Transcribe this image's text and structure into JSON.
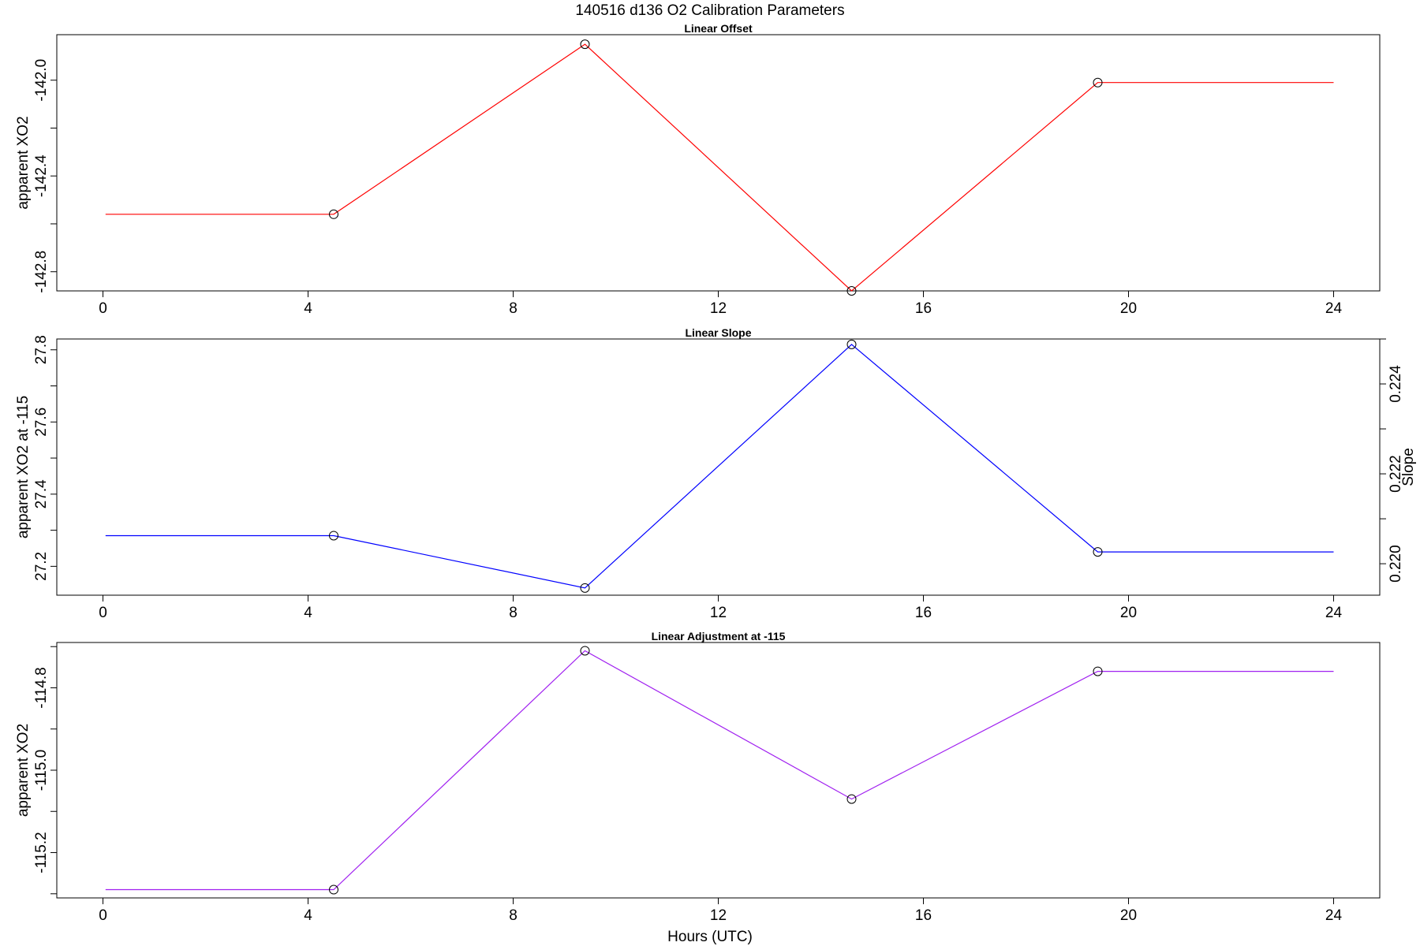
{
  "title": "140516   d136   O2 Calibration Parameters",
  "xlabel": "Hours (UTC)",
  "chart_data": [
    {
      "type": "line",
      "title": "Linear Offset",
      "xlabel": "",
      "ylabel": "apparent XO2",
      "x_ticks": [
        "0",
        "4",
        "8",
        "12",
        "16",
        "20",
        "24"
      ],
      "y_ticks": [
        "-142.0",
        "-142.4",
        "-142.8"
      ],
      "xlim": [
        -0.9,
        24.9
      ],
      "ylim": [
        -142.88,
        -141.81
      ],
      "grid": false,
      "series": [
        {
          "color": "#ff0000",
          "x": [
            0.05,
            4.5,
            9.4,
            14.6,
            19.4,
            24.0
          ],
          "y": [
            -142.56,
            -142.56,
            -141.85,
            -142.88,
            -142.01,
            -142.01
          ]
        }
      ],
      "markers": {
        "x": [
          4.5,
          9.4,
          14.6,
          19.4
        ],
        "y": [
          -142.56,
          -141.85,
          -142.88,
          -142.01
        ]
      }
    },
    {
      "type": "line",
      "title": "Linear Slope",
      "xlabel": "",
      "ylabel": "apparent XO2 at -115",
      "y2label": "Slope",
      "x_ticks": [
        "0",
        "4",
        "8",
        "12",
        "16",
        "20",
        "24"
      ],
      "y_ticks": [
        "27.2",
        "27.4",
        "27.6",
        "27.8"
      ],
      "y2_ticks": [
        "0.220",
        "0.222",
        "0.224"
      ],
      "xlim": [
        -0.9,
        24.9
      ],
      "ylim": [
        27.12,
        27.83
      ],
      "y2lim": [
        0.2193,
        0.225
      ],
      "grid": false,
      "series": [
        {
          "color": "#0000ff",
          "x": [
            0.05,
            4.5,
            9.4,
            14.6,
            19.4,
            24.0
          ],
          "y": [
            27.285,
            27.285,
            27.14,
            27.815,
            27.24,
            27.24
          ]
        }
      ],
      "markers": {
        "x": [
          4.5,
          9.4,
          14.6,
          19.4
        ],
        "y": [
          27.285,
          27.14,
          27.815,
          27.24
        ]
      }
    },
    {
      "type": "line",
      "title": "Linear Adjustment at -115",
      "xlabel": "Hours (UTC)",
      "ylabel": "apparent XO2",
      "x_ticks": [
        "0",
        "4",
        "8",
        "12",
        "16",
        "20",
        "24"
      ],
      "y_ticks": [
        "-114.8",
        "-115.0",
        "-115.2"
      ],
      "xlim": [
        -0.9,
        24.9
      ],
      "ylim": [
        -115.31,
        -114.69
      ],
      "grid": false,
      "series": [
        {
          "color": "#a020f0",
          "x": [
            0.05,
            4.5,
            9.4,
            14.6,
            19.4,
            24.0
          ],
          "y": [
            -115.29,
            -115.29,
            -114.71,
            -115.07,
            -114.76,
            -114.76
          ]
        }
      ],
      "markers": {
        "x": [
          4.5,
          9.4,
          14.6,
          19.4
        ],
        "y": [
          -115.29,
          -114.71,
          -115.07,
          -114.76
        ]
      }
    }
  ]
}
